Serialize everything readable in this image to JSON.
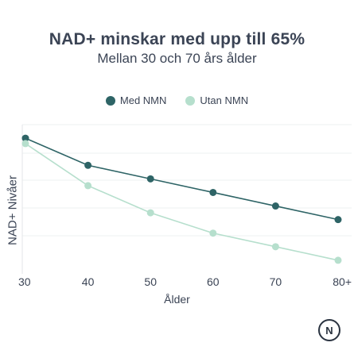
{
  "chart_data": {
    "type": "line",
    "title": "NAD+ minskar med upp till 65%",
    "subtitle": "Mellan 30 och 70 års ålder",
    "xlabel": "Ålder",
    "ylabel": "NAD+ Nivåer",
    "categories": [
      "30",
      "40",
      "50",
      "60",
      "70",
      "80+"
    ],
    "series": [
      {
        "name": "Med NMN",
        "color": "#2e6466",
        "values": [
          100,
          80,
          70,
          60,
          50,
          40
        ]
      },
      {
        "name": "Utan NMN",
        "color": "#b6dfcd",
        "values": [
          96,
          65,
          45,
          30,
          20,
          10
        ]
      }
    ],
    "ylim": [
      0,
      110
    ],
    "legend_position": "top-center",
    "grid": true
  },
  "brand": {
    "logo_letter": "N"
  }
}
